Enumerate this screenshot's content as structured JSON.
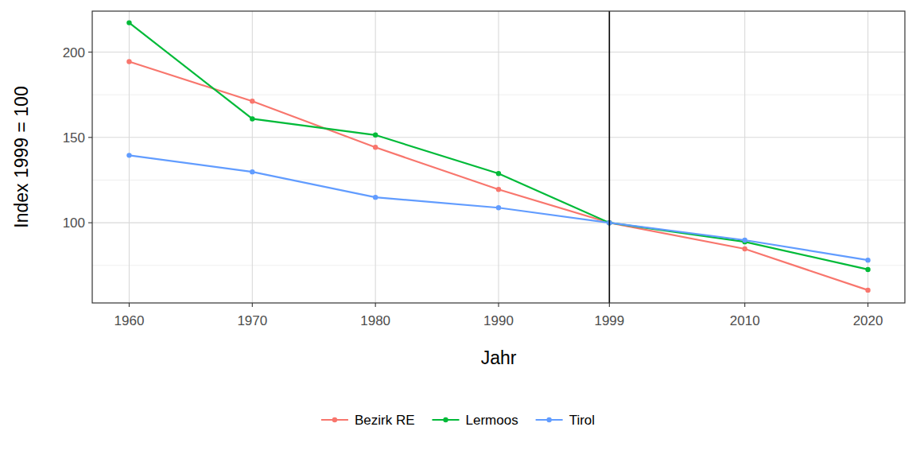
{
  "chart_data": {
    "type": "line",
    "x_label": "Jahr",
    "y_label": "Index 1999 = 100",
    "x": [
      1960,
      1970,
      1980,
      1990,
      1999,
      2010,
      2020
    ],
    "series": [
      {
        "name": "Bezirk RE",
        "color": "#F8766D",
        "marker": "circle",
        "values": [
          194.4,
          171.2,
          144.2,
          119.5,
          100,
          84.7,
          60.5
        ]
      },
      {
        "name": "Lermoos",
        "color": "#00BA38",
        "marker": "circle",
        "values": [
          217.2,
          160.9,
          151.4,
          128.8,
          100,
          88.8,
          72.6
        ]
      },
      {
        "name": "Tirol",
        "color": "#619CFF",
        "marker": "circle",
        "values": [
          139.5,
          129.8,
          114.9,
          108.8,
          100,
          89.8,
          78.1
        ]
      }
    ],
    "xlim": [
      1957,
      2023
    ],
    "xticks": [
      1960,
      1970,
      1980,
      1990,
      1999,
      2010,
      2020
    ],
    "ylim": [
      53,
      224
    ],
    "yticks": [
      100,
      150,
      200
    ],
    "reference_line_x": 1999,
    "grid": true,
    "legend": "bottom"
  }
}
